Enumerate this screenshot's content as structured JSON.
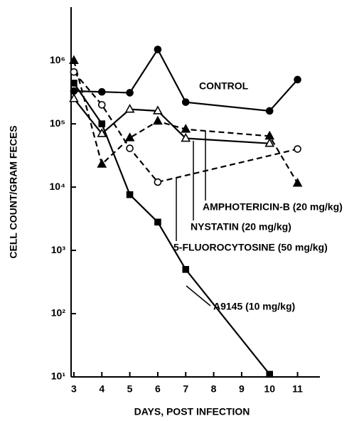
{
  "chart_data": {
    "type": "line",
    "x_label": "DAYS, POST INFECTION",
    "y_label": "CELL COUNT/GRAM FECES",
    "xlim": [
      2.9,
      11.8
    ],
    "xticks": [
      3,
      4,
      5,
      6,
      7,
      8,
      9,
      10,
      11
    ],
    "ylim": [
      10,
      7000000
    ],
    "log_y": true,
    "yticks": [
      {
        "value": 10,
        "label": "10¹"
      },
      {
        "value": 100,
        "label": "10²"
      },
      {
        "value": 1000,
        "label": "10³"
      },
      {
        "value": 10000,
        "label": "10⁴"
      },
      {
        "value": 100000,
        "label": "10⁵"
      },
      {
        "value": 1000000,
        "label": "10⁶"
      }
    ],
    "series": [
      {
        "name": "CONTROL",
        "color": "#000000",
        "marker": "circle",
        "filled": true,
        "dashed": false,
        "x": [
          3,
          4,
          5,
          6,
          7,
          10,
          11
        ],
        "values": [
          330000,
          320000,
          310000,
          1500000,
          220000,
          160000,
          500000
        ]
      },
      {
        "name": "AMPHOTERICIN-B (20 mg/kg)",
        "color": "#000000",
        "marker": "triangle",
        "filled": true,
        "dashed": true,
        "x": [
          3,
          4,
          5,
          6,
          7,
          10,
          11
        ],
        "values": [
          1000000,
          23000,
          60000,
          110000,
          82000,
          64000,
          11500
        ]
      },
      {
        "name": "NYSTATIN (20 mg/kg)",
        "color": "#000000",
        "marker": "triangle",
        "filled": false,
        "dashed": false,
        "x": [
          3,
          4,
          5,
          6,
          7,
          10
        ],
        "values": [
          250000,
          70000,
          170000,
          160000,
          59000,
          49000
        ]
      },
      {
        "name": "5-FLUOROCYTOSINE (50 mg/kg)",
        "color": "#000000",
        "marker": "circle",
        "filled": false,
        "dashed": true,
        "x": [
          3,
          4,
          5,
          6,
          11
        ],
        "values": [
          660000,
          200000,
          41000,
          12000,
          40000
        ]
      },
      {
        "name": "A9145 (10 mg/kg)",
        "color": "#000000",
        "marker": "square",
        "filled": true,
        "dashed": false,
        "x": [
          3,
          4,
          5,
          6,
          7,
          10
        ],
        "values": [
          440000,
          100000,
          7600,
          2800,
          500,
          11
        ]
      }
    ]
  }
}
